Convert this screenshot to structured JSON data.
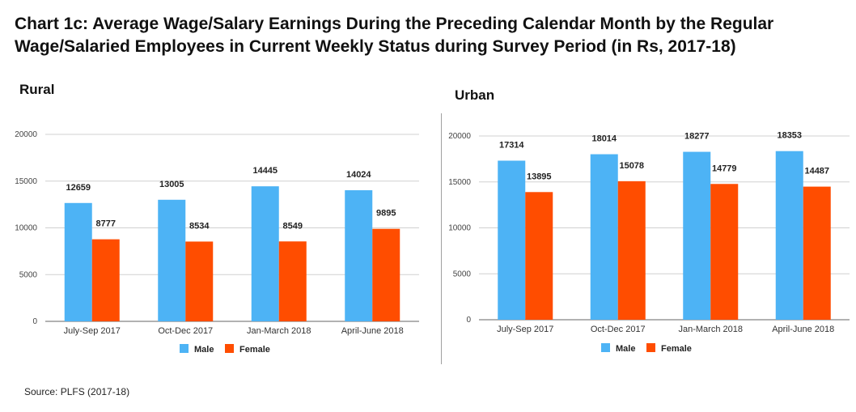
{
  "title": "Chart 1c: Average Wage/Salary Earnings During the Preceding Calendar Month by the Regular Wage/Salaried Employees in Current Weekly Status during Survey Period (in Rs, 2017-18)",
  "source": "Source: PLFS (2017-18)",
  "colors": {
    "male": "#4db3f5",
    "female": "#ff4d00",
    "grid": "#d0d0d0"
  },
  "chart_data": [
    {
      "type": "bar",
      "title": "Rural",
      "categories": [
        "July-Sep 2017",
        "Oct-Dec 2017",
        "Jan-March 2018",
        "April-June 2018"
      ],
      "series": [
        {
          "name": "Male",
          "values": [
            12659,
            13005,
            14445,
            14024
          ]
        },
        {
          "name": "Female",
          "values": [
            8777,
            8534,
            8549,
            9895
          ]
        }
      ],
      "yticks": [
        0,
        5000,
        10000,
        15000,
        20000
      ],
      "ylim": [
        0,
        20000
      ],
      "xlabel": "",
      "ylabel": "",
      "legend": "bottom"
    },
    {
      "type": "bar",
      "title": "Urban",
      "categories": [
        "July-Sep 2017",
        "Oct-Dec 2017",
        "Jan-March 2018",
        "April-June 2018"
      ],
      "series": [
        {
          "name": "Male",
          "values": [
            17314,
            18014,
            18277,
            18353
          ]
        },
        {
          "name": "Female",
          "values": [
            13895,
            15078,
            14779,
            14487
          ]
        }
      ],
      "yticks": [
        0,
        5000,
        10000,
        15000,
        20000
      ],
      "ylim": [
        0,
        20000
      ],
      "xlabel": "",
      "ylabel": "",
      "legend": "bottom"
    }
  ]
}
